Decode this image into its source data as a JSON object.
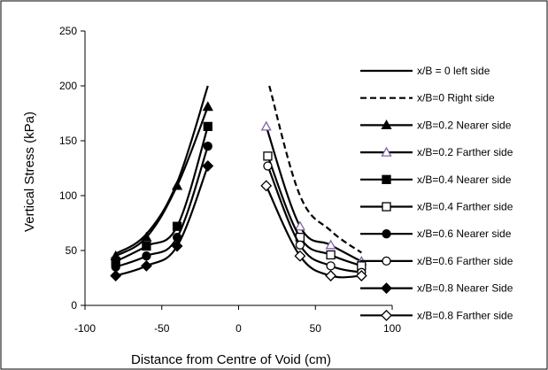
{
  "chart_data": {
    "type": "line",
    "title": "",
    "xlabel": "Distance from Centre of Void (cm)",
    "ylabel": "Vertical Stress (kPa)",
    "xlim": [
      -100,
      100
    ],
    "ylim": [
      0,
      250
    ],
    "x_ticks": [
      "-100",
      "-50",
      "0",
      "50",
      "100"
    ],
    "y_ticks": [
      "0",
      "50",
      "100",
      "150",
      "200",
      "250"
    ],
    "grid": false,
    "legend_position": "right",
    "colors": {
      "lines": "#000000",
      "x02_far_marker": "#8064a2",
      "frame": "#000000"
    },
    "series": [
      {
        "name": "x/B = 0 left side",
        "style": "solid",
        "marker": "none",
        "x": [
          -80,
          -60,
          -40,
          -20
        ],
        "y": [
          47,
          65,
          112,
          200
        ]
      },
      {
        "name": "x/B=0 Right side",
        "style": "dashed",
        "marker": "none",
        "x": [
          20,
          40,
          60,
          80
        ],
        "y": [
          200,
          100,
          68,
          48
        ]
      },
      {
        "name": "x/B=0.2 Nearer side",
        "style": "solid",
        "marker": "triangle-filled",
        "x": [
          -80,
          -60,
          -40,
          -20
        ],
        "y": [
          45,
          62,
          109,
          181
        ]
      },
      {
        "name": "x/B=0.2 Farther side",
        "style": "solid",
        "marker": "triangle-open",
        "x": [
          18,
          40,
          60,
          80
        ],
        "y": [
          163,
          72,
          55,
          40
        ]
      },
      {
        "name": "x/B=0.4 Nearer side",
        "style": "solid",
        "marker": "square-filled",
        "x": [
          -80,
          -60,
          -40,
          -20
        ],
        "y": [
          40,
          54,
          72,
          163
        ]
      },
      {
        "name": "x/B=0.4 Farther side",
        "style": "solid",
        "marker": "square-open",
        "x": [
          19,
          40,
          60,
          80
        ],
        "y": [
          136,
          62,
          46,
          36
        ]
      },
      {
        "name": "x/B=0.6 Nearer side",
        "style": "solid",
        "marker": "circle-filled",
        "x": [
          -80,
          -60,
          -40,
          -20
        ],
        "y": [
          35,
          45,
          62,
          145
        ]
      },
      {
        "name": "x/B=0.6 Farther side",
        "style": "solid",
        "marker": "circle-open",
        "x": [
          19,
          40,
          60,
          80
        ],
        "y": [
          127,
          55,
          36,
          30
        ]
      },
      {
        "name": "x/B=0.8 Nearer Side",
        "style": "solid",
        "marker": "diamond-filled",
        "x": [
          -80,
          -60,
          -40,
          -20
        ],
        "y": [
          27,
          36,
          54,
          127
        ]
      },
      {
        "name": "x/B=0.8 Farther side",
        "style": "solid",
        "marker": "diamond-open",
        "x": [
          18,
          40,
          60,
          80
        ],
        "y": [
          109,
          45,
          27,
          27
        ]
      }
    ]
  }
}
